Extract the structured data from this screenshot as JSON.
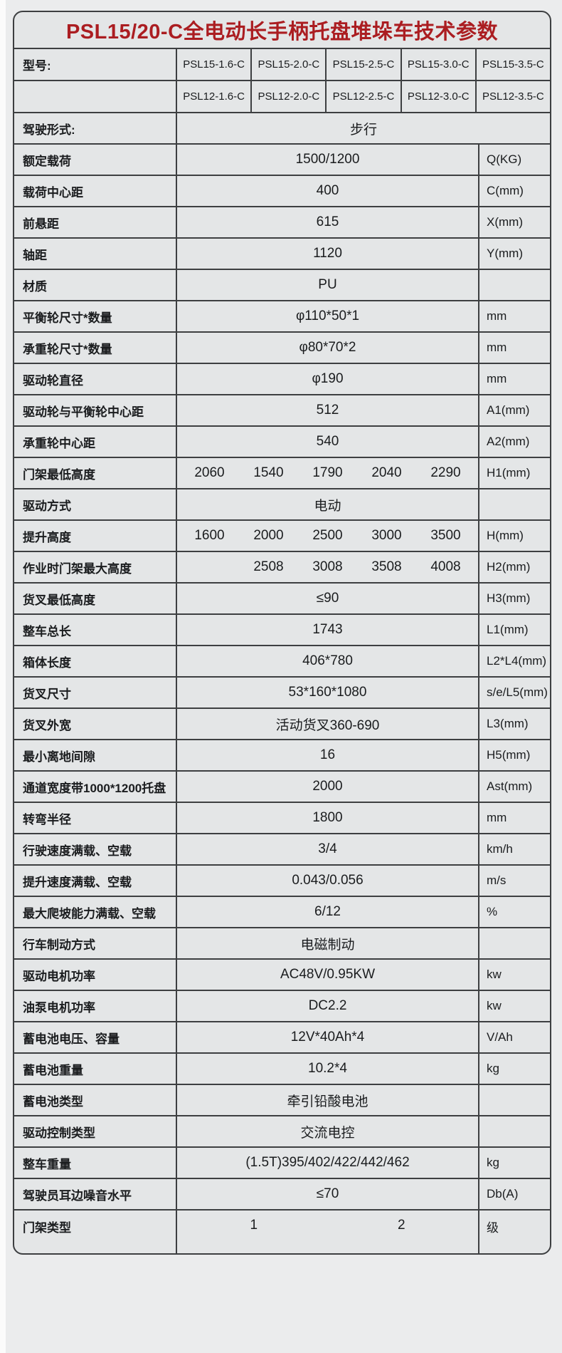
{
  "title": "PSL15/20-C全电动长手柄托盘堆垛车技术参数",
  "colors": {
    "title_red": "#ab1d21",
    "cell_bg": "#e4e6e7",
    "border": "#3d3f41",
    "page_bg": "#ebeced",
    "text": "#1a1c1e"
  },
  "model_header": {
    "label": "型号:",
    "rows": [
      [
        "PSL15-1.6-C",
        "PSL15-2.0-C",
        "PSL15-2.5-C",
        "PSL15-3.0-C",
        "PSL15-3.5-C"
      ],
      [
        "PSL12-1.6-C",
        "PSL12-2.0-C",
        "PSL12-2.5-C",
        "PSL12-3.0-C",
        "PSL12-3.5-C"
      ]
    ]
  },
  "rows": [
    {
      "label": "驾驶形式:",
      "value": "步行",
      "full": true
    },
    {
      "label": "额定载荷",
      "value": "1500/1200",
      "unit": "Q(KG)"
    },
    {
      "label": "载荷中心距",
      "value": "400",
      "unit": "C(mm)"
    },
    {
      "label": "前悬距",
      "value": "615",
      "unit": "X(mm)"
    },
    {
      "label": "轴距",
      "value": "1120",
      "unit": "Y(mm)"
    },
    {
      "label": "材质",
      "value": "PU",
      "unit": ""
    },
    {
      "label": "平衡轮尺寸*数量",
      "value": "φ110*50*1",
      "unit": "mm"
    },
    {
      "label": "承重轮尺寸*数量",
      "value": "φ80*70*2",
      "unit": "mm"
    },
    {
      "label": "驱动轮直径",
      "value": "φ190",
      "unit": "mm"
    },
    {
      "label": "驱动轮与平衡轮中心距",
      "value": "512",
      "unit": "A1(mm)"
    },
    {
      "label": "承重轮中心距",
      "value": "540",
      "unit": "A2(mm)"
    },
    {
      "label": "门架最低高度",
      "values": [
        "2060",
        "1540",
        "1790",
        "2040",
        "2290"
      ],
      "unit": "H1(mm)"
    },
    {
      "label": "驱动方式",
      "value": "电动",
      "unit": ""
    },
    {
      "label": "提升高度",
      "values": [
        "1600",
        "2000",
        "2500",
        "3000",
        "3500"
      ],
      "unit": "H(mm)"
    },
    {
      "label": "作业时门架最大高度",
      "values": [
        "",
        "2508",
        "3008",
        "3508",
        "4008"
      ],
      "unit": "H2(mm)"
    },
    {
      "label": "货叉最低高度",
      "value": "≤90",
      "unit": "H3(mm)"
    },
    {
      "label": "整车总长",
      "value": "1743",
      "unit": "L1(mm)"
    },
    {
      "label": "箱体长度",
      "value": "406*780",
      "unit": "L2*L4(mm)"
    },
    {
      "label": "货叉尺寸",
      "value": "53*160*1080",
      "unit": "s/e/L5(mm)"
    },
    {
      "label": "货叉外宽",
      "value": "活动货叉360-690",
      "unit": "L3(mm)"
    },
    {
      "label": "最小离地间隙",
      "value": "16",
      "unit": "H5(mm)"
    },
    {
      "label": "通道宽度带1000*1200托盘",
      "value": "2000",
      "unit": "Ast(mm)"
    },
    {
      "label": "转弯半径",
      "value": "1800",
      "unit": "mm"
    },
    {
      "label": "行驶速度满载、空载",
      "value": "3/4",
      "unit": "km/h"
    },
    {
      "label": "提升速度满载、空载",
      "value": "0.043/0.056",
      "unit": "m/s"
    },
    {
      "label": "最大爬坡能力满载、空载",
      "value": "6/12",
      "unit": "%"
    },
    {
      "label": "行车制动方式",
      "value": "电磁制动",
      "unit": ""
    },
    {
      "label": "驱动电机功率",
      "value": "AC48V/0.95KW",
      "unit": "kw"
    },
    {
      "label": "油泵电机功率",
      "value": "DC2.2",
      "unit": "kw"
    },
    {
      "label": "蓄电池电压、容量",
      "value": "12V*40Ah*4",
      "unit": "V/Ah"
    },
    {
      "label": "蓄电池重量",
      "value": "10.2*4",
      "unit": "kg"
    },
    {
      "label": "蓄电池类型",
      "value": "牵引铅酸电池",
      "unit": ""
    },
    {
      "label": "驱动控制类型",
      "value": "交流电控",
      "unit": ""
    },
    {
      "label": "整车重量",
      "value": "(1.5T)395/402/422/442/462",
      "unit": "kg"
    },
    {
      "label": "驾驶员耳边噪音水平",
      "value": "≤70",
      "unit": "Db(A)"
    },
    {
      "label": "门架类型",
      "values": [
        "1",
        "2"
      ],
      "unit": "级",
      "tall": true
    }
  ]
}
